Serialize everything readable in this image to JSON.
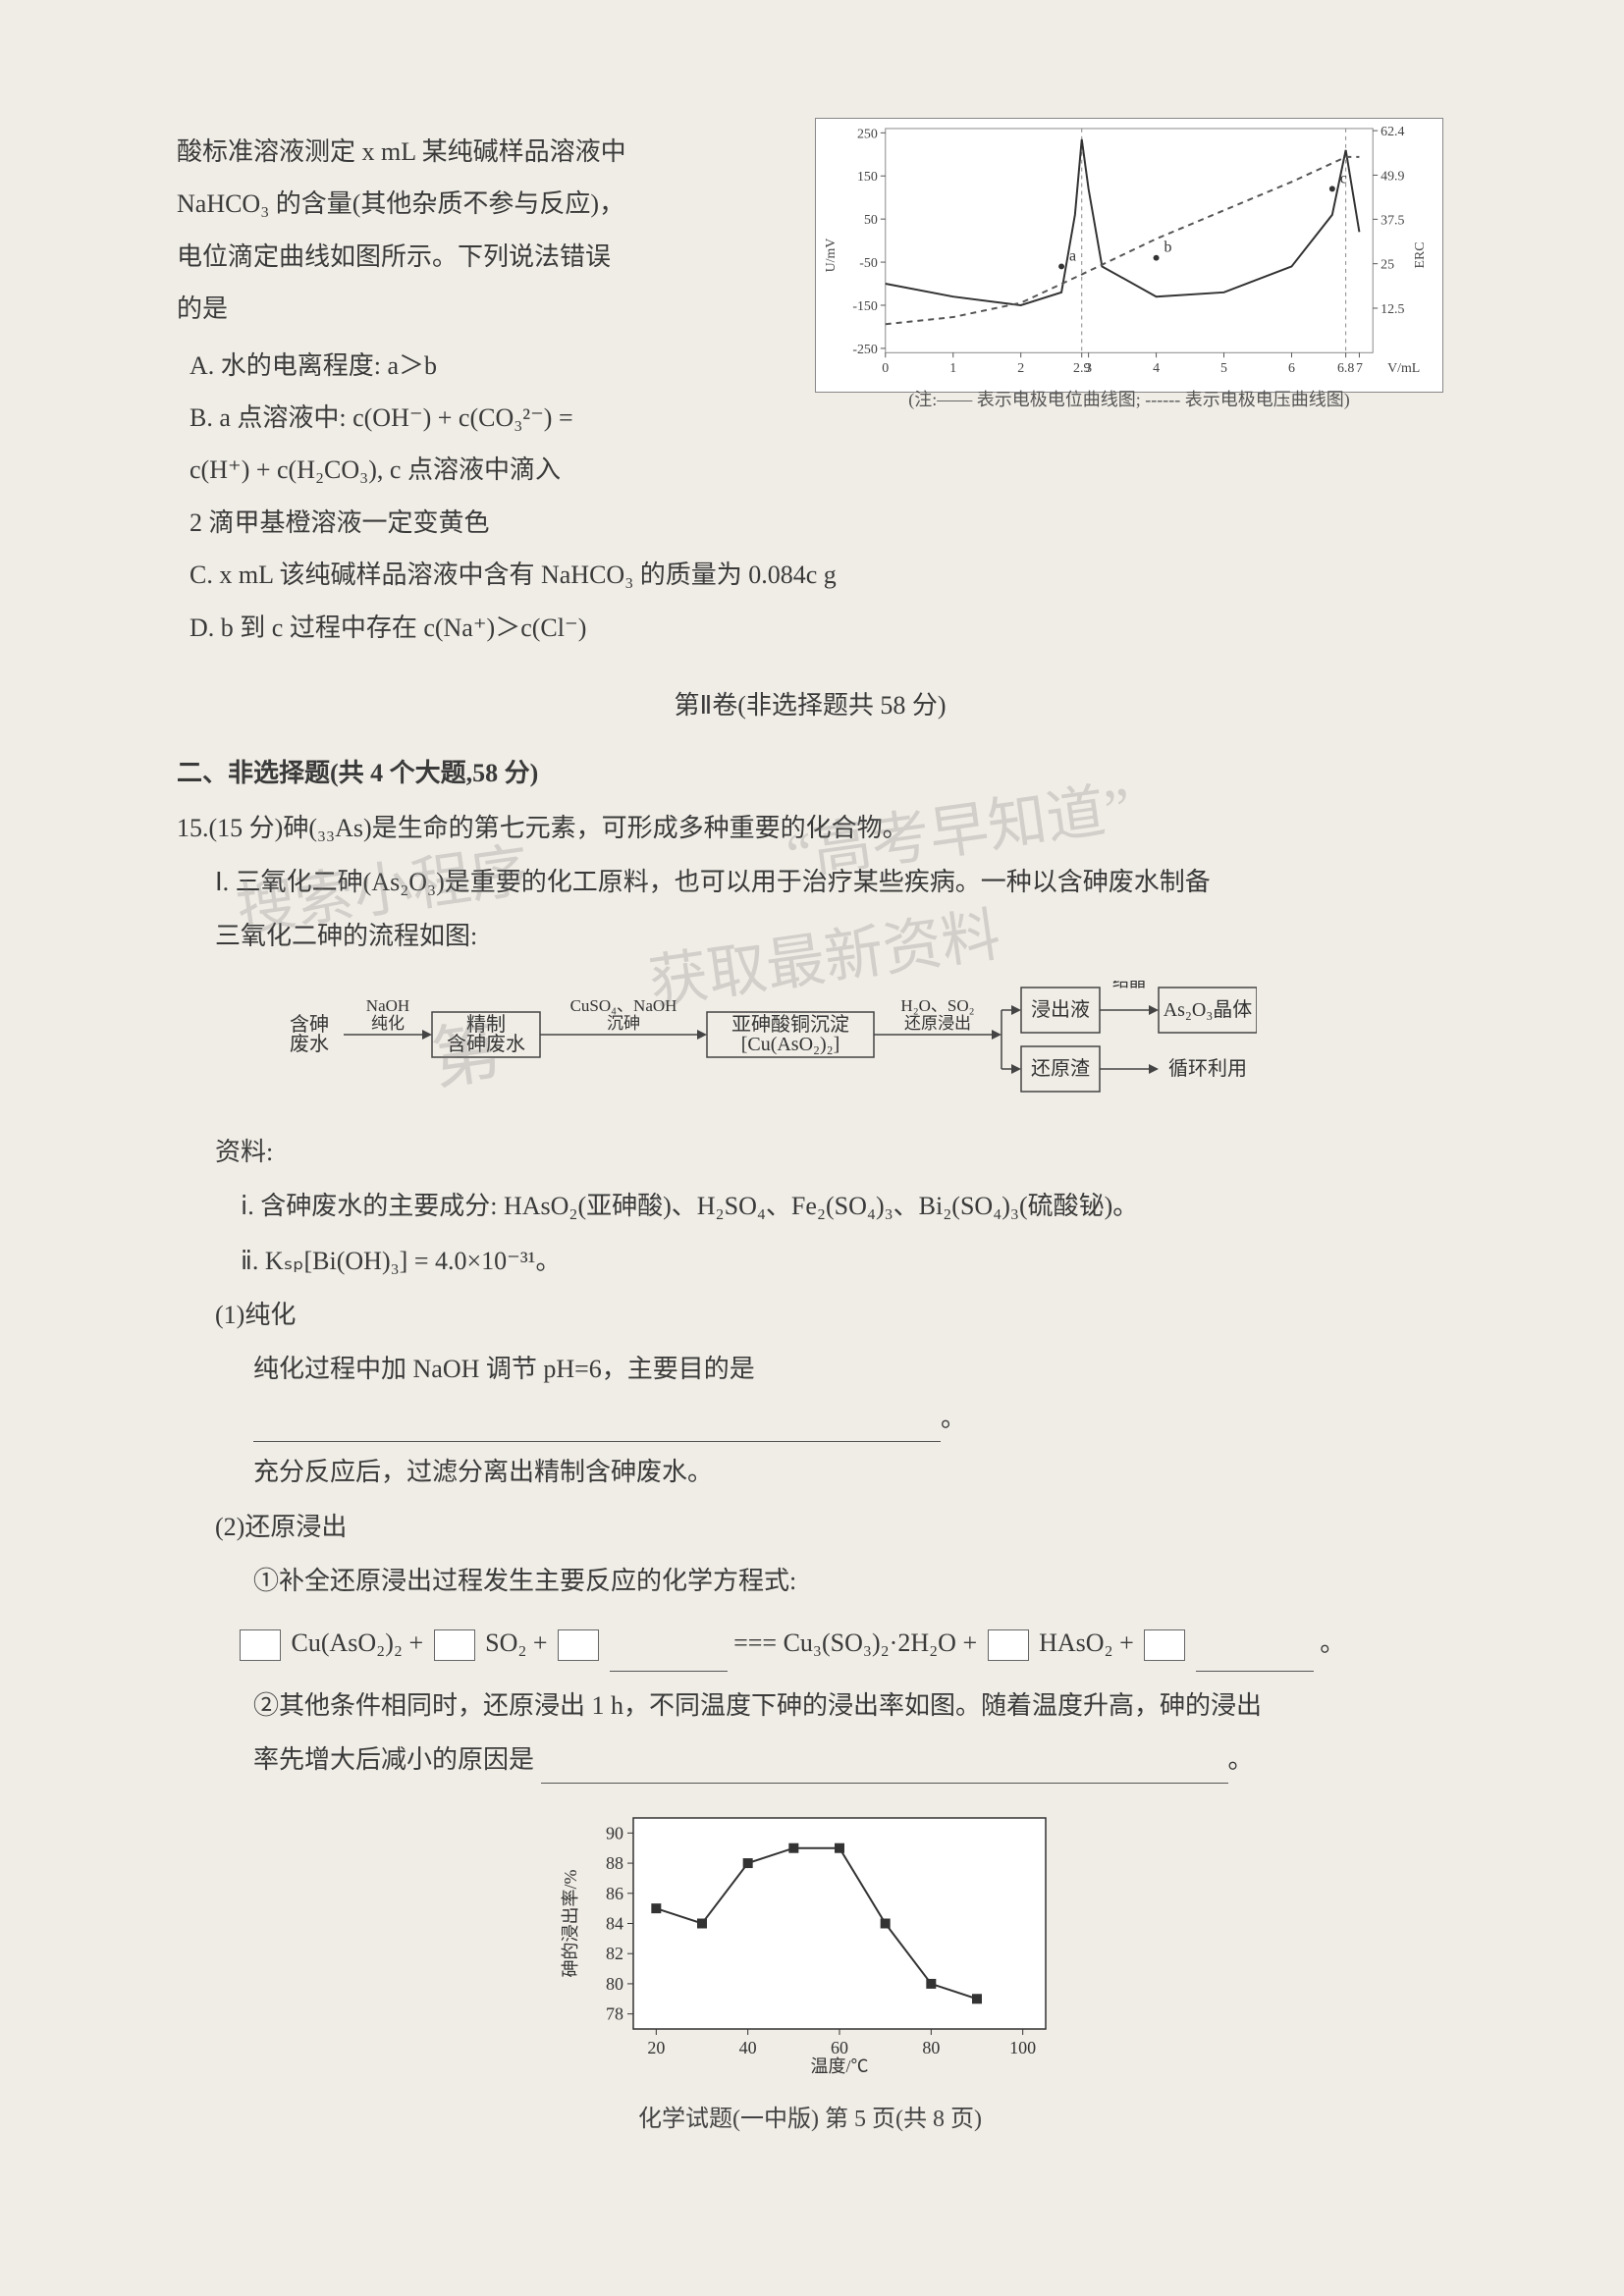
{
  "intro": {
    "l1": "酸标准溶液测定 x mL 某纯碱样品溶液中",
    "l2": "NaHCO₃ 的含量(其他杂质不参与反应)，",
    "l3": "电位滴定曲线如图所示。下列说法错误",
    "l4": "的是"
  },
  "options": {
    "A": "A. 水的电离程度: a＞b",
    "B1": "B. a 点溶液中: c(OH⁻) + c(CO₃²⁻) =",
    "B2": "c(H⁺) + c(H₂CO₃), c 点溶液中滴入",
    "B3": "2 滴甲基橙溶液一定变黄色",
    "C": "C. x mL 该纯碱样品溶液中含有 NaHCO₃ 的质量为 0.084c g",
    "D": "D. b 到 c 过程中存在 c(Na⁺)＞c(Cl⁻)"
  },
  "section2_title": "第Ⅱ卷(非选择题共 58 分)",
  "part2_heading": "二、非选择题(共 4 个大题,58 分)",
  "q15": {
    "head": "15.(15 分)砷(₃₃As)是生命的第七元素，可形成多种重要的化合物。",
    "I1": "Ⅰ. 三氧化二砷(As₂O₃)是重要的化工原料，也可以用于治疗某些疾病。一种以含砷废水制备",
    "I2": "三氧化二砷的流程如图:",
    "zi": "资料:",
    "zi_i": "ⅰ. 含砷废水的主要成分: HAsO₂(亚砷酸)、H₂SO₄、Fe₂(SO₄)₃、Bi₂(SO₄)₃(硫酸铋)。",
    "zi_ii": "ⅱ. Kₛₚ[Bi(OH)₃] = 4.0×10⁻³¹。",
    "p1_t": "(1)纯化",
    "p1_1": "纯化过程中加 NaOH 调节 pH=6，主要目的是",
    "p1_2": "充分反应后，过滤分离出精制含砷废水。",
    "p2_t": "(2)还原浸出",
    "p2_1": "①补全还原浸出过程发生主要反应的化学方程式:",
    "eq_parts": {
      "a": "Cu(AsO₂)₂ +",
      "b": "SO₂ +",
      "c": "=== Cu₃(SO₃)₂·2H₂O +",
      "d": "HAsO₂ +",
      "e": "。"
    },
    "p2_2a": "②其他条件相同时，还原浸出 1 h，不同温度下砷的浸出率如图。随着温度升高，砷的浸出",
    "p2_2b": "率先增大后减小的原因是"
  },
  "chart1": {
    "type": "line",
    "xlabel": "V/mL",
    "ylabel_left": "U/mV",
    "y2_values": [
      "62.4",
      "49.9",
      "37.5",
      "25",
      "12.5"
    ],
    "y2_label": "ERC",
    "caption": "(注:—— 表示电极电位曲线图; ------ 表示电极电压曲线图)",
    "x_ticks": [
      "0",
      "1",
      "2",
      "2.9",
      "3",
      "4",
      "5",
      "6",
      "6.8",
      "7"
    ],
    "y_ticks": [
      "-250",
      "-150",
      "-50",
      "50",
      "150",
      "250"
    ],
    "letters": [
      "a",
      "b",
      "c"
    ],
    "potential_series": [
      {
        "x": 0.0,
        "y": -100
      },
      {
        "x": 1.0,
        "y": -130
      },
      {
        "x": 2.0,
        "y": -150
      },
      {
        "x": 2.6,
        "y": -120
      },
      {
        "x": 2.8,
        "y": 60
      },
      {
        "x": 2.9,
        "y": 235
      },
      {
        "x": 3.0,
        "y": 120
      },
      {
        "x": 3.2,
        "y": -60
      },
      {
        "x": 4.0,
        "y": -130
      },
      {
        "x": 5.0,
        "y": -120
      },
      {
        "x": 6.0,
        "y": -60
      },
      {
        "x": 6.6,
        "y": 60
      },
      {
        "x": 6.8,
        "y": 210
      },
      {
        "x": 7.0,
        "y": 20
      }
    ],
    "erc_series": [
      {
        "x": 0.0,
        "y": 8
      },
      {
        "x": 1.0,
        "y": 10
      },
      {
        "x": 2.0,
        "y": 14
      },
      {
        "x": 2.9,
        "y": 22
      },
      {
        "x": 4.0,
        "y": 32
      },
      {
        "x": 5.0,
        "y": 40
      },
      {
        "x": 6.0,
        "y": 48
      },
      {
        "x": 6.8,
        "y": 55
      },
      {
        "x": 7.0,
        "y": 55
      }
    ],
    "xlim": [
      0,
      7.2
    ],
    "ylim_left": [
      -260,
      260
    ],
    "ylim_right": [
      0,
      63
    ],
    "line_color": "#333333",
    "dash_color": "#555555",
    "grid_color": "#cccccc",
    "background": "#ffffff",
    "font_size": 14
  },
  "flow": {
    "nodes": [
      {
        "id": "n1",
        "label": "含砷\n废水",
        "x": 0,
        "w": 70,
        "box": false
      },
      {
        "id": "a1",
        "label": "NaOH\n纯化",
        "x": 70,
        "w": 80,
        "arrow": true
      },
      {
        "id": "n2",
        "label": "精制\n含砷废水",
        "x": 160,
        "w": 110,
        "box": true
      },
      {
        "id": "a2",
        "label": "CuSO₄、NaOH\n沉砷",
        "x": 280,
        "w": 150,
        "arrow": true
      },
      {
        "id": "n3",
        "label": "亚砷酸铜沉淀\n[Cu(AsO₂)₂]",
        "x": 440,
        "w": 170,
        "box": true
      },
      {
        "id": "a3",
        "label": "H₂O、SO₂\n还原浸出",
        "x": 620,
        "w": 120,
        "arrow": true
      },
      {
        "id": "n4a",
        "label": "浸出液",
        "x": 750,
        "w": 80,
        "box": true,
        "row": "top"
      },
      {
        "id": "a4",
        "label": "结晶",
        "x": 835,
        "w": 60,
        "arrow": true,
        "row": "top"
      },
      {
        "id": "n5",
        "label": "As₂O₃晶体",
        "x": 900,
        "w": 100,
        "box": true,
        "row": "top"
      },
      {
        "id": "n4b",
        "label": "还原渣",
        "x": 750,
        "w": 80,
        "box": true,
        "row": "bot"
      },
      {
        "id": "n6",
        "label": "循环利用",
        "x": 880,
        "w": 100,
        "box": false,
        "row": "bot"
      }
    ],
    "box_border": "#444444",
    "arrow_color": "#444444",
    "font_size": 20
  },
  "chart2": {
    "type": "line-marker",
    "xlabel": "温度/℃",
    "ylabel": "砷的浸出率/%",
    "x_ticks": [
      "20",
      "40",
      "60",
      "80",
      "100"
    ],
    "y_ticks": [
      "78",
      "80",
      "82",
      "84",
      "86",
      "88",
      "90"
    ],
    "xlim": [
      15,
      105
    ],
    "ylim": [
      77,
      91
    ],
    "points": [
      {
        "x": 20,
        "y": 85
      },
      {
        "x": 30,
        "y": 84
      },
      {
        "x": 40,
        "y": 88
      },
      {
        "x": 50,
        "y": 89
      },
      {
        "x": 60,
        "y": 89
      },
      {
        "x": 70,
        "y": 84
      },
      {
        "x": 80,
        "y": 80
      },
      {
        "x": 90,
        "y": 79
      }
    ],
    "marker": "square",
    "marker_color": "#333333",
    "line_color": "#333333",
    "line_width": 2,
    "background": "#ffffff",
    "font_size": 18
  },
  "footer": "化学试题(一中版) 第 5 页(共 8 页)",
  "watermarks": {
    "w1": "搜索小程序",
    "w2": "“高考早知道”",
    "w3": "获取最新资料",
    "w4": "第"
  },
  "colors": {
    "page_bg": "#f0ede6",
    "text": "#3a3a3a"
  }
}
